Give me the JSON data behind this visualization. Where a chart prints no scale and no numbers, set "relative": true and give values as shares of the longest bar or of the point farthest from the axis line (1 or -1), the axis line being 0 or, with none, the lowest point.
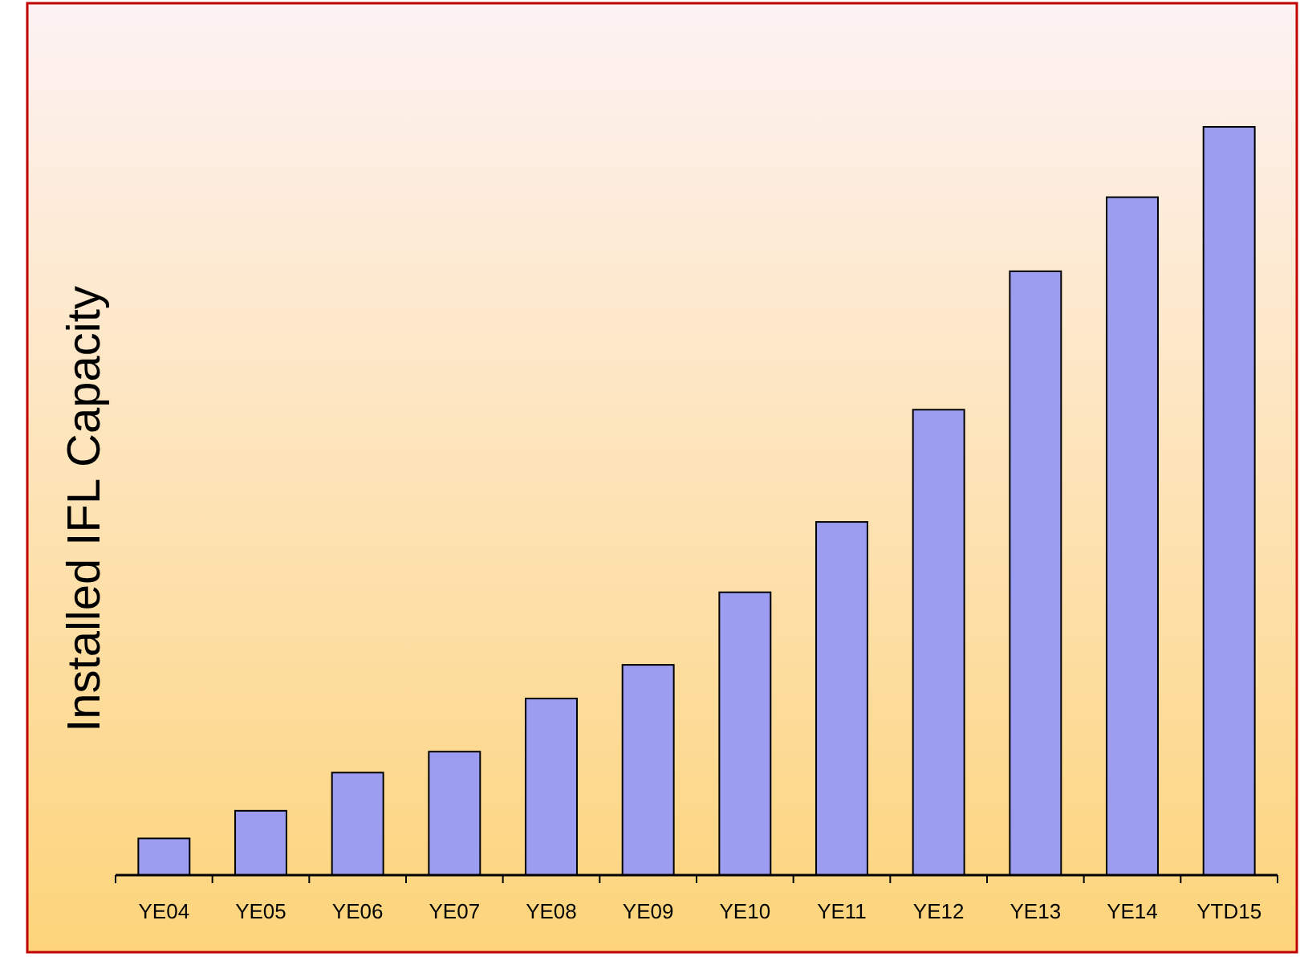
{
  "chart_data": {
    "type": "bar",
    "ylabel": "Installed IFL Capacity",
    "relative": true,
    "color": "#9c9cf0",
    "categories": [
      "YE04",
      "YE05",
      "YE06",
      "YE07",
      "YE08",
      "YE09",
      "YE10",
      "YE11",
      "YE12",
      "YE13",
      "YE14",
      "YTD15"
    ],
    "values": [
      0.049,
      0.086,
      0.137,
      0.165,
      0.236,
      0.281,
      0.378,
      0.472,
      0.622,
      0.807,
      0.906,
      1
    ]
  }
}
